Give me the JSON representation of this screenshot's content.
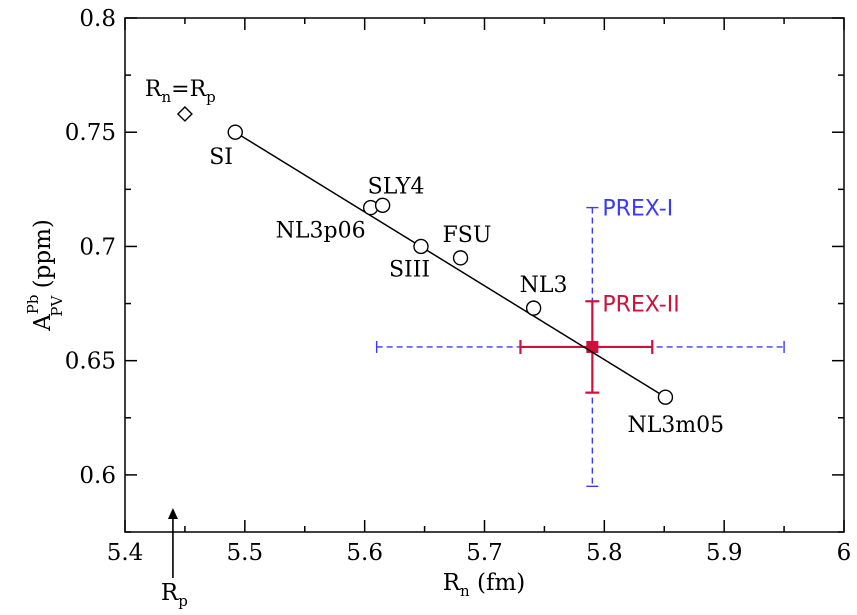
{
  "chart_data": {
    "type": "scatter",
    "xlabel": {
      "main": "R",
      "sub": "n",
      "unit": " (fm)"
    },
    "ylabel": {
      "main": "A",
      "sup": "Pb",
      "sub": "PV",
      "unit": " (ppm)"
    },
    "xlim": [
      5.4,
      6.0
    ],
    "ylim": [
      0.575,
      0.8
    ],
    "xticks": [
      "5.4",
      "5.5",
      "5.6",
      "5.7",
      "5.8",
      "5.9",
      "6"
    ],
    "yticks": [
      "0.6",
      "0.65",
      "0.7",
      "0.75",
      "0.8"
    ],
    "models": [
      {
        "label": "SI",
        "x": 5.492,
        "y": 0.75
      },
      {
        "label": "NL3p06",
        "x": 5.605,
        "y": 0.717
      },
      {
        "label": "SLY4",
        "x": 5.615,
        "y": 0.718
      },
      {
        "label": "SIII",
        "x": 5.647,
        "y": 0.7
      },
      {
        "label": "FSU",
        "x": 5.68,
        "y": 0.695
      },
      {
        "label": "NL3",
        "x": 5.741,
        "y": 0.673
      },
      {
        "label": "NL3m05",
        "x": 5.851,
        "y": 0.634
      }
    ],
    "fit_line": {
      "x": [
        5.492,
        5.851
      ],
      "y": [
        0.75,
        0.634
      ]
    },
    "reference": {
      "label_main": "R",
      "label_sub_1": "n",
      "label_eq": "=R",
      "label_sub_2": "p",
      "x": 5.45,
      "y": 0.758
    },
    "rp_marker": {
      "label_main": "R",
      "label_sub": "p",
      "x": 5.44
    },
    "experiments": [
      {
        "name": "PREX-I",
        "color": "#3a3aff",
        "dashed": true,
        "x": 5.79,
        "y": 0.656,
        "xerr": [
          5.61,
          5.95
        ],
        "yerr": [
          0.595,
          0.717
        ]
      },
      {
        "name": "PREX-II",
        "color": "#d0103a",
        "dashed": false,
        "x": 5.79,
        "y": 0.656,
        "xerr": [
          5.73,
          5.84
        ],
        "yerr": [
          0.636,
          0.676
        ]
      }
    ]
  }
}
